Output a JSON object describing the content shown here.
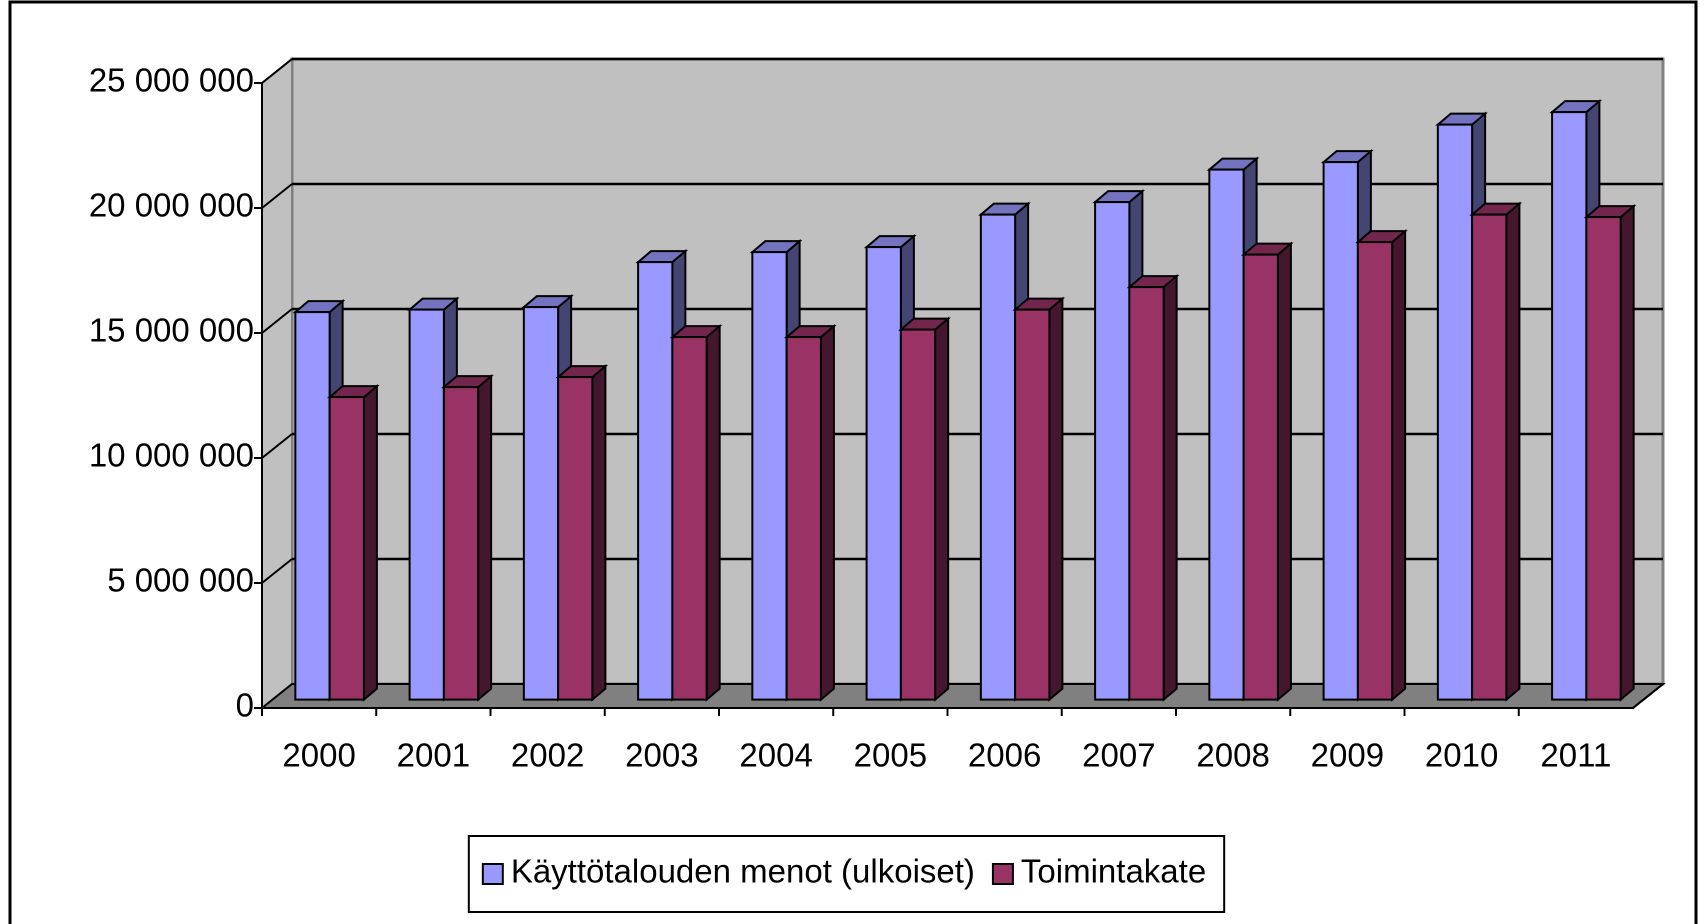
{
  "chart_data": {
    "type": "bar3d",
    "categories": [
      "2000",
      "2001",
      "2002",
      "2003",
      "2004",
      "2005",
      "2006",
      "2007",
      "2008",
      "2009",
      "2010",
      "2011"
    ],
    "series": [
      {
        "name": "Käyttötalouden menot (ulkoiset)",
        "color": "#9999ff",
        "values": [
          15500000,
          15600000,
          15700000,
          17500000,
          17900000,
          18100000,
          19400000,
          19900000,
          21200000,
          21500000,
          23000000,
          23500000
        ]
      },
      {
        "name": "Toimintakate",
        "color": "#993366",
        "values": [
          12100000,
          12500000,
          12900000,
          14500000,
          14500000,
          14800000,
          15600000,
          16500000,
          17800000,
          18300000,
          19400000,
          19300000
        ]
      }
    ],
    "ylim": [
      0,
      25000000
    ],
    "yticks": [
      {
        "value": 0,
        "label": "0"
      },
      {
        "value": 5000000,
        "label": "5 000 000"
      },
      {
        "value": 10000000,
        "label": "10 000 000"
      },
      {
        "value": 15000000,
        "label": "15 000 000"
      },
      {
        "value": 20000000,
        "label": "20 000 000"
      },
      {
        "value": 25000000,
        "label": "25 000 000"
      }
    ],
    "grid": true,
    "legend": "bottom"
  }
}
